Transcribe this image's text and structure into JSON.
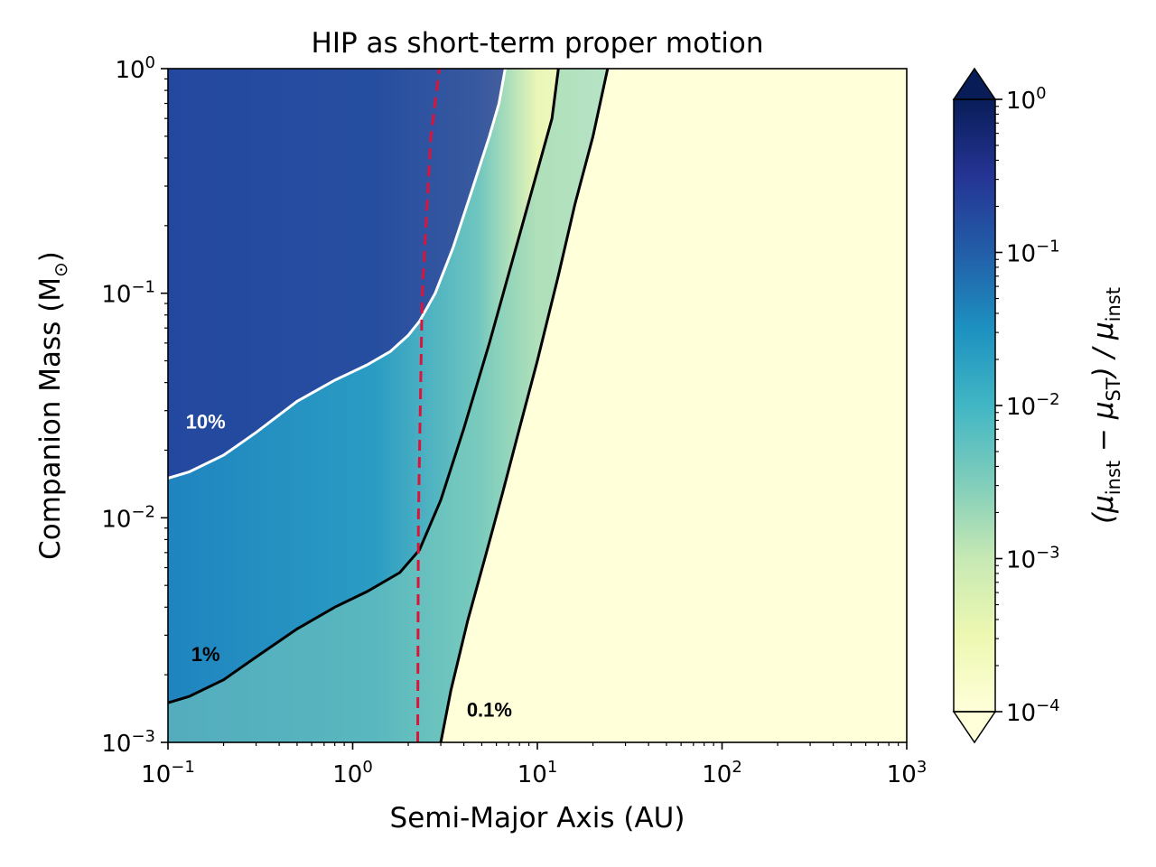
{
  "chart_data": {
    "type": "heatmap",
    "title": "HIP as short-term proper motion",
    "xlabel": "Semi-Major Axis (AU)",
    "ylabel": "Companion Mass (M",
    "ylabel_sub": "⊙",
    "ylabel_close": ")",
    "x_scale": "log",
    "y_scale": "log",
    "xlim": [
      0.1,
      1000
    ],
    "ylim": [
      0.001,
      1
    ],
    "x_ticks": [
      {
        "value": 0.1,
        "base": "10",
        "exp": "−1"
      },
      {
        "value": 1,
        "base": "10",
        "exp": "0"
      },
      {
        "value": 10,
        "base": "10",
        "exp": "1"
      },
      {
        "value": 100,
        "base": "10",
        "exp": "2"
      },
      {
        "value": 1000,
        "base": "10",
        "exp": "3"
      }
    ],
    "y_ticks": [
      {
        "value": 0.001,
        "base": "10",
        "exp": "−3"
      },
      {
        "value": 0.01,
        "base": "10",
        "exp": "−2"
      },
      {
        "value": 0.1,
        "base": "10",
        "exp": "−1"
      },
      {
        "value": 1,
        "base": "10",
        "exp": "0"
      }
    ],
    "colorbar": {
      "label_parts": [
        "(μ",
        "inst",
        " − μ",
        "ST",
        ") / μ",
        "inst"
      ],
      "scale": "log",
      "range": [
        0.0001,
        1
      ],
      "extend": "both",
      "colormap": [
        "#ffffd9",
        "#edf8b1",
        "#c7e9b4",
        "#7fcdbb",
        "#41b6c4",
        "#1d91c0",
        "#225ea8",
        "#253494",
        "#081d58"
      ],
      "ticks": [
        {
          "value": 0.0001,
          "base": "10",
          "exp": "−4"
        },
        {
          "value": 0.001,
          "base": "10",
          "exp": "−3"
        },
        {
          "value": 0.01,
          "base": "10",
          "exp": "−2"
        },
        {
          "value": 0.1,
          "base": "10",
          "exp": "−1"
        },
        {
          "value": 1,
          "base": "10",
          "exp": "0"
        }
      ]
    },
    "contours": [
      {
        "label": "10%",
        "level": 0.1,
        "color": "#ffffff",
        "label_at": [
          0.16,
          0.025
        ],
        "points": [
          [
            0.1,
            0.015
          ],
          [
            0.13,
            0.016
          ],
          [
            0.2,
            0.019
          ],
          [
            0.3,
            0.024
          ],
          [
            0.5,
            0.033
          ],
          [
            0.8,
            0.041
          ],
          [
            1.2,
            0.048
          ],
          [
            1.6,
            0.055
          ],
          [
            2.0,
            0.065
          ],
          [
            2.3,
            0.075
          ],
          [
            2.8,
            0.1
          ],
          [
            3.5,
            0.16
          ],
          [
            4.5,
            0.3
          ],
          [
            5.5,
            0.5
          ],
          [
            6.2,
            0.7
          ],
          [
            6.7,
            1.0
          ]
        ]
      },
      {
        "label": "1%",
        "level": 0.01,
        "color": "#000000",
        "label_at": [
          0.16,
          0.0023
        ],
        "points": [
          [
            0.1,
            0.0015
          ],
          [
            0.13,
            0.0016
          ],
          [
            0.2,
            0.0019
          ],
          [
            0.3,
            0.0024
          ],
          [
            0.5,
            0.0032
          ],
          [
            0.8,
            0.004
          ],
          [
            1.2,
            0.0047
          ],
          [
            1.8,
            0.0057
          ],
          [
            2.3,
            0.0072
          ],
          [
            3.0,
            0.012
          ],
          [
            4.0,
            0.025
          ],
          [
            5.5,
            0.06
          ],
          [
            7.5,
            0.15
          ],
          [
            10,
            0.35
          ],
          [
            12,
            0.6
          ],
          [
            13,
            1.0
          ]
        ]
      },
      {
        "label": "0.1%",
        "level": 0.001,
        "color": "#000000",
        "label_at": [
          5.5,
          0.0013
        ],
        "points": [
          [
            3.0,
            0.001
          ],
          [
            3.4,
            0.0017
          ],
          [
            4.2,
            0.0035
          ],
          [
            5.3,
            0.007
          ],
          [
            6.5,
            0.013
          ],
          [
            8.0,
            0.025
          ],
          [
            10,
            0.05
          ],
          [
            13,
            0.12
          ],
          [
            16,
            0.25
          ],
          [
            20,
            0.5
          ],
          [
            24,
            1.0
          ]
        ]
      }
    ],
    "reference_line": {
      "style": "dashed",
      "color": "#dc143c",
      "points": [
        [
          2.25,
          0.001
        ],
        [
          2.27,
          0.01
        ],
        [
          2.38,
          0.1
        ],
        [
          2.65,
          0.5
        ],
        [
          2.95,
          1.0
        ]
      ]
    }
  }
}
